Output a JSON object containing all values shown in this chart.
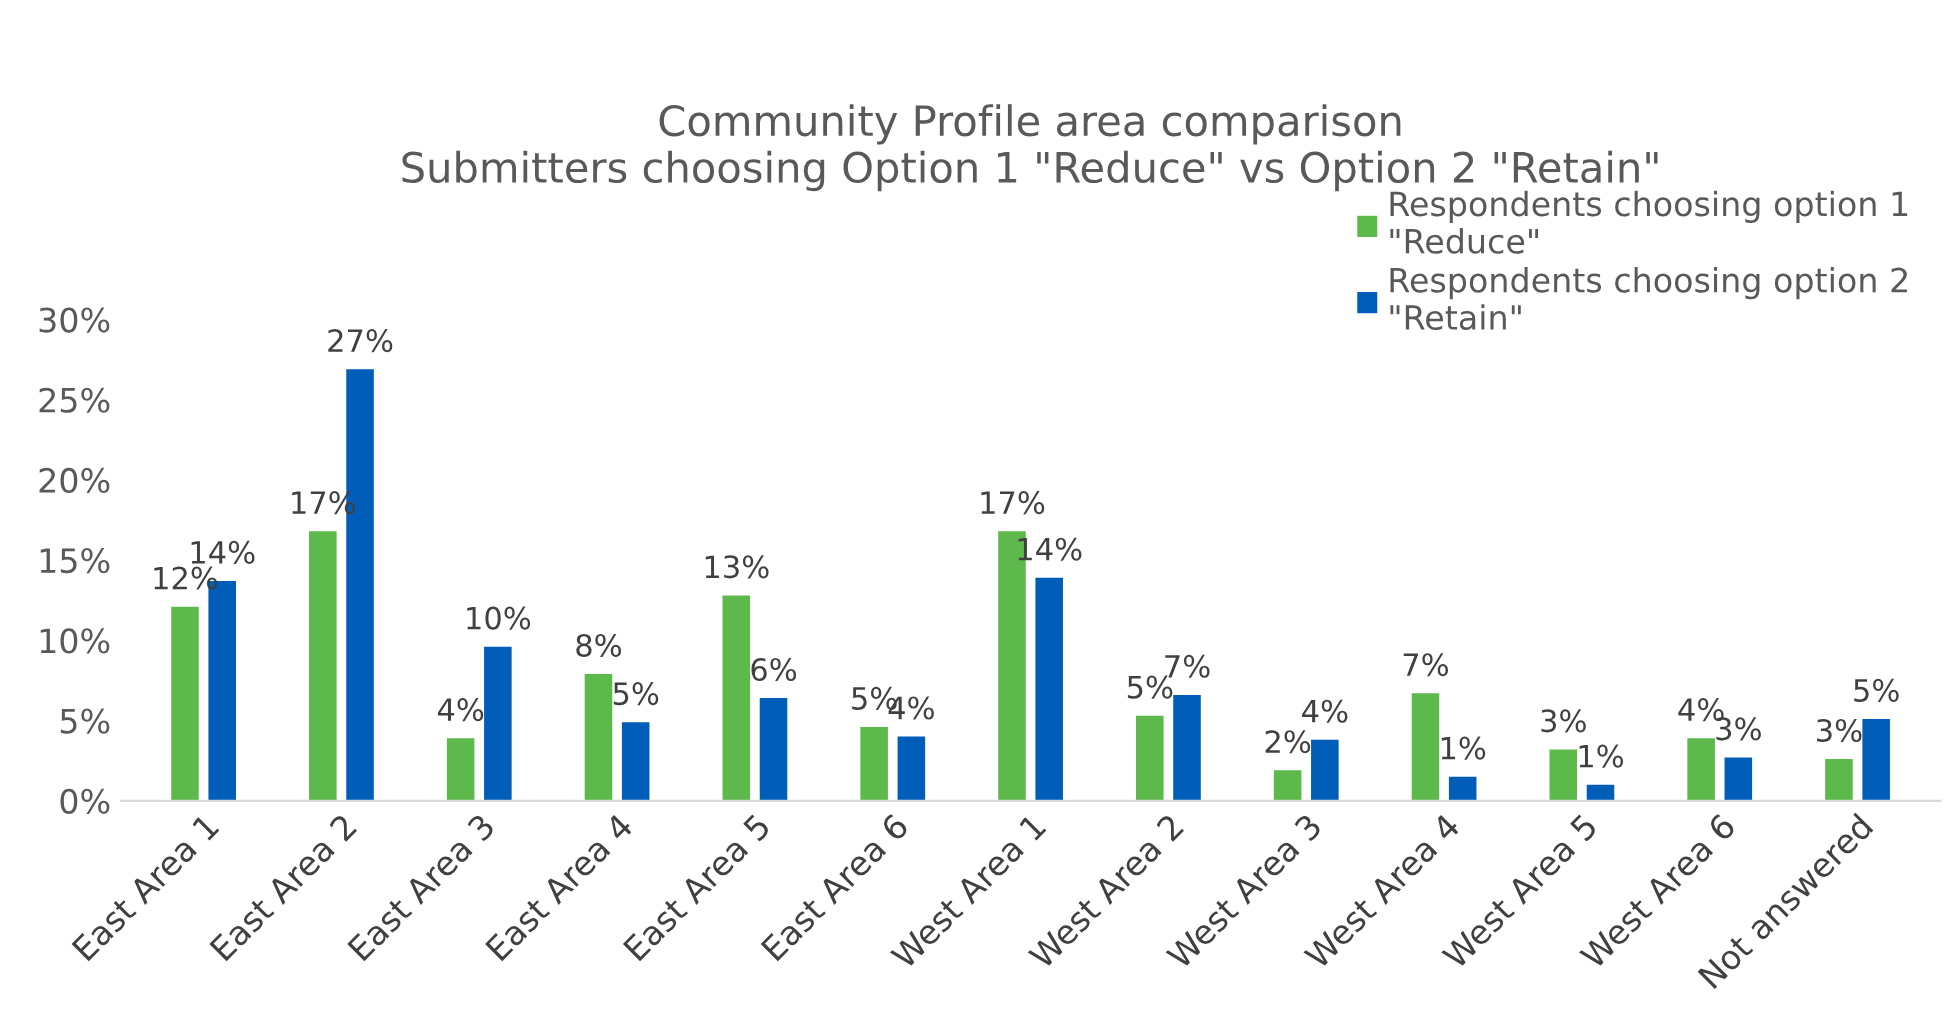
{
  "chart_data": {
    "type": "bar",
    "title": "Community Profile area comparison\nSubmitters choosing Option 1 \"Reduce\" vs Option 2 \"Retain\"",
    "categories": [
      "East Area 1",
      "East Area 2",
      "East Area 3",
      "East Area 4",
      "East Area 5",
      "East Area 6",
      "West Area 1",
      "West Area 2",
      "West Area 3",
      "West Area 4",
      "West Area 5",
      "West Area 6",
      "Not answered"
    ],
    "series": [
      {
        "name": "Respondents choosing option 1\n\"Reduce\"",
        "color": "#5db94b",
        "values": [
          12.1,
          16.8,
          3.9,
          7.9,
          12.8,
          4.6,
          16.8,
          5.3,
          1.9,
          6.7,
          3.2,
          3.9,
          2.6
        ],
        "value_labels": [
          "12%",
          "17%",
          "4%",
          "8%",
          "13%",
          "5%",
          "17%",
          "5%",
          "2%",
          "7%",
          "3%",
          "4%",
          "3%"
        ]
      },
      {
        "name": "Respondents choosing option 2\n\"Retain\"",
        "color": "#005eb8",
        "values": [
          13.7,
          26.9,
          9.6,
          4.9,
          6.4,
          4.0,
          13.9,
          6.6,
          3.8,
          1.5,
          1.0,
          2.7,
          5.1
        ],
        "value_labels": [
          "14%",
          "27%",
          "10%",
          "5%",
          "6%",
          "4%",
          "14%",
          "7%",
          "4%",
          "1%",
          "1%",
          "3%",
          "5%"
        ]
      }
    ],
    "ylim": [
      0,
      30
    ],
    "yticks": [
      {
        "value": 0,
        "label": "0%"
      },
      {
        "value": 5,
        "label": "5%"
      },
      {
        "value": 10,
        "label": "10%"
      },
      {
        "value": 15,
        "label": "15%"
      },
      {
        "value": 20,
        "label": "20%"
      },
      {
        "value": 25,
        "label": "25%"
      },
      {
        "value": 30,
        "label": "30%"
      }
    ],
    "legend": "top right",
    "grid": false
  }
}
